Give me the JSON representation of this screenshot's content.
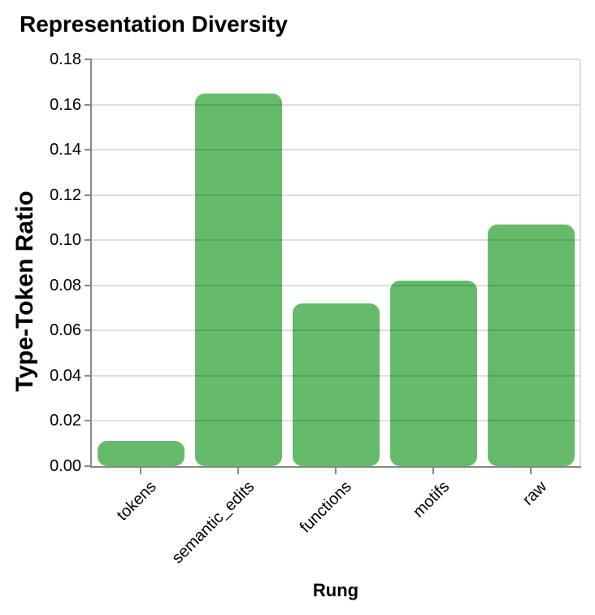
{
  "chart_data": {
    "type": "bar",
    "title": "Representation Diversity",
    "xlabel": "Rung",
    "ylabel": "Type-Token Ratio",
    "categories": [
      "tokens",
      "semantic_edits",
      "functions",
      "motifs",
      "raw"
    ],
    "values": [
      0.011,
      0.165,
      0.072,
      0.082,
      0.107
    ],
    "ylim": [
      0,
      0.18
    ],
    "ytick_step": 0.02,
    "ytick_labels": [
      "0.00",
      "0.02",
      "0.04",
      "0.06",
      "0.08",
      "0.10",
      "0.12",
      "0.14",
      "0.16",
      "0.18"
    ],
    "x_tick_rotation": -45,
    "grid": true,
    "legend": false,
    "colors": {
      "bar": "#66bb6a",
      "grid": "#dddddd",
      "axis": "#888888",
      "text": "#000000",
      "background": "#ffffff"
    }
  }
}
